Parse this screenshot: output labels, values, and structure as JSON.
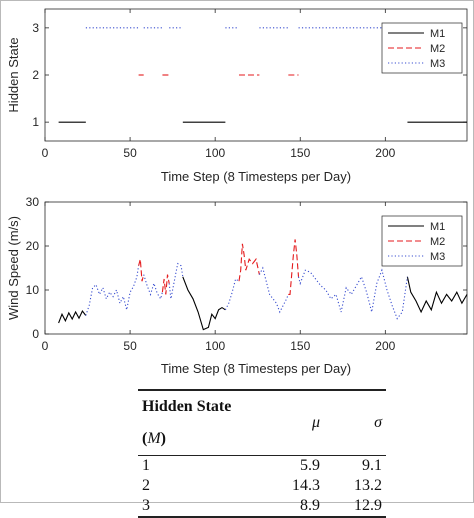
{
  "chart_data": [
    {
      "type": "line",
      "xlabel": "Time Step (8 Timesteps per Day)",
      "ylabel": "Hidden State",
      "xlim": [
        0,
        248
      ],
      "ylim": [
        0.6,
        3.4
      ],
      "xticks": [
        0,
        50,
        100,
        150,
        200
      ],
      "yticks": [
        1,
        2,
        3
      ],
      "legend_position": "top-right",
      "series": [
        {
          "name": "M1",
          "color": "#000000",
          "style": "solid",
          "y": 1,
          "segments": [
            [
              8,
              24
            ],
            [
              81,
              106
            ],
            [
              213,
              248
            ]
          ]
        },
        {
          "name": "M2",
          "color": "#e41a1c",
          "style": "dashed",
          "y": 2,
          "segments": [
            [
              55,
              58
            ],
            [
              69,
              73
            ],
            [
              114,
              126
            ],
            [
              143,
              149
            ]
          ]
        },
        {
          "name": "M3",
          "color": "#3a4fd0",
          "style": "dotted",
          "y": 3,
          "segments": [
            [
              24,
              55
            ],
            [
              58,
              69
            ],
            [
              73,
              81
            ],
            [
              106,
              114
            ],
            [
              126,
              143
            ],
            [
              149,
              213
            ]
          ]
        }
      ]
    },
    {
      "type": "line",
      "xlabel": "Time Step (8 Timesteps per Day)",
      "ylabel": "Wind Speed (m/s)",
      "xlim": [
        0,
        248
      ],
      "ylim": [
        0,
        30
      ],
      "xticks": [
        0,
        50,
        100,
        150,
        200
      ],
      "yticks": [
        0,
        10,
        20,
        30
      ],
      "legend_position": "top-right",
      "points": [
        [
          8,
          2.5
        ],
        [
          10,
          4.5
        ],
        [
          12,
          3.0
        ],
        [
          14,
          4.8
        ],
        [
          16,
          3.4
        ],
        [
          18,
          5.0
        ],
        [
          20,
          3.6
        ],
        [
          22,
          5.2
        ],
        [
          24,
          4.2
        ],
        [
          26,
          6.5
        ],
        [
          28,
          10.5
        ],
        [
          30,
          11.2
        ],
        [
          32,
          9.0
        ],
        [
          34,
          10.5
        ],
        [
          36,
          8.0
        ],
        [
          38,
          9.5
        ],
        [
          40,
          8.5
        ],
        [
          42,
          10.0
        ],
        [
          44,
          7.0
        ],
        [
          46,
          8.5
        ],
        [
          48,
          5.5
        ],
        [
          50,
          9.5
        ],
        [
          52,
          10.8
        ],
        [
          54,
          13.0
        ],
        [
          55,
          15.5
        ],
        [
          56,
          17.0
        ],
        [
          57,
          12.0
        ],
        [
          58,
          13.5
        ],
        [
          60,
          11.0
        ],
        [
          62,
          9.0
        ],
        [
          64,
          11.5
        ],
        [
          66,
          9.2
        ],
        [
          68,
          8.0
        ],
        [
          69,
          9.5
        ],
        [
          70,
          12.5
        ],
        [
          71,
          9.0
        ],
        [
          72,
          13.5
        ],
        [
          73,
          11.5
        ],
        [
          74,
          8.0
        ],
        [
          76,
          12.0
        ],
        [
          78,
          16.0
        ],
        [
          80,
          15.5
        ],
        [
          81,
          13.0
        ],
        [
          84,
          10.0
        ],
        [
          87,
          8.0
        ],
        [
          90,
          5.0
        ],
        [
          93,
          1.0
        ],
        [
          96,
          1.5
        ],
        [
          98,
          4.5
        ],
        [
          100,
          3.5
        ],
        [
          102,
          5.5
        ],
        [
          104,
          6.0
        ],
        [
          106,
          5.5
        ],
        [
          108,
          7.0
        ],
        [
          110,
          9.5
        ],
        [
          112,
          12.5
        ],
        [
          114,
          12.0
        ],
        [
          115,
          14.5
        ],
        [
          116,
          20.5
        ],
        [
          117,
          18.0
        ],
        [
          118,
          14.5
        ],
        [
          120,
          17.0
        ],
        [
          122,
          16.0
        ],
        [
          124,
          17.0
        ],
        [
          126,
          13.5
        ],
        [
          128,
          15.0
        ],
        [
          130,
          12.0
        ],
        [
          132,
          9.0
        ],
        [
          134,
          8.0
        ],
        [
          136,
          7.0
        ],
        [
          138,
          5.0
        ],
        [
          140,
          6.5
        ],
        [
          142,
          8.0
        ],
        [
          143,
          9.0
        ],
        [
          144,
          9.0
        ],
        [
          145,
          13.5
        ],
        [
          146,
          18.0
        ],
        [
          147,
          21.5
        ],
        [
          148,
          18.0
        ],
        [
          149,
          13.0
        ],
        [
          150,
          11.5
        ],
        [
          153,
          14.5
        ],
        [
          156,
          14.0
        ],
        [
          159,
          12.5
        ],
        [
          162,
          11.0
        ],
        [
          165,
          10.0
        ],
        [
          168,
          8.0
        ],
        [
          171,
          9.0
        ],
        [
          174,
          5.0
        ],
        [
          177,
          10.5
        ],
        [
          180,
          9.0
        ],
        [
          183,
          11.0
        ],
        [
          186,
          13.0
        ],
        [
          189,
          9.5
        ],
        [
          192,
          5.0
        ],
        [
          195,
          11.5
        ],
        [
          198,
          14.5
        ],
        [
          201,
          10.0
        ],
        [
          204,
          6.5
        ],
        [
          207,
          3.5
        ],
        [
          210,
          5.0
        ],
        [
          213,
          13.0
        ],
        [
          215,
          9.5
        ],
        [
          218,
          7.5
        ],
        [
          221,
          5.0
        ],
        [
          224,
          7.5
        ],
        [
          227,
          5.5
        ],
        [
          230,
          9.5
        ],
        [
          233,
          7.0
        ],
        [
          236,
          9.0
        ],
        [
          239,
          7.5
        ],
        [
          242,
          9.5
        ],
        [
          245,
          7.0
        ],
        [
          248,
          9.0
        ]
      ],
      "series": [
        {
          "name": "M1",
          "color": "#000000",
          "style": "solid"
        },
        {
          "name": "M2",
          "color": "#e41a1c",
          "style": "dashed"
        },
        {
          "name": "M3",
          "color": "#3a4fd0",
          "style": "dotted"
        }
      ]
    }
  ],
  "table": {
    "headers": [
      "Hidden State (M)",
      "μ",
      "σ"
    ],
    "rows": [
      [
        "1",
        "5.9",
        "9.1"
      ],
      [
        "2",
        "14.3",
        "13.2"
      ],
      [
        "3",
        "8.9",
        "12.9"
      ]
    ]
  }
}
